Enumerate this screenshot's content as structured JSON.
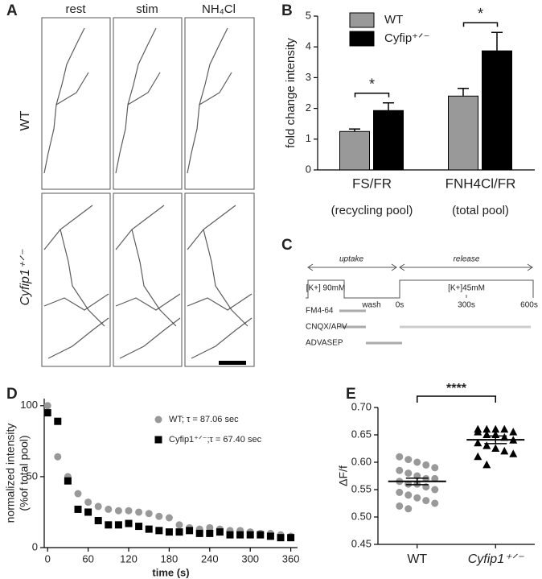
{
  "panel_labels": [
    "A",
    "B",
    "C",
    "D",
    "E"
  ],
  "images": {
    "columns": [
      "rest",
      "stim",
      "NH₄Cl"
    ],
    "rows": [
      "WT",
      "Cyfip1⁺ᐟ⁻"
    ]
  },
  "protocol": {
    "phases": [
      "uptake",
      "release"
    ],
    "stimuli": [
      "[K+] 90mM",
      "[K+]45mM"
    ],
    "wash": "wash",
    "times": [
      "0s",
      "300s",
      "600s"
    ],
    "drugs": [
      "FM4-64",
      "CNQX/APV",
      "ADVASEP"
    ]
  },
  "chart_data": [
    {
      "type": "bar",
      "y_label": "fold change intensity",
      "categories": [
        "FS/FR",
        "FNH4Cl/FR"
      ],
      "category_notes": [
        "(recycling pool)",
        "(total pool)"
      ],
      "series": [
        {
          "name": "WT",
          "color": "#999999",
          "values": [
            1.25,
            2.4
          ],
          "errors": [
            0.08,
            0.25
          ]
        },
        {
          "name": "Cyfip⁺ᐟ⁻",
          "color": "#000000",
          "values": [
            1.93,
            3.87
          ],
          "errors": [
            0.25,
            0.6
          ]
        }
      ],
      "ylim": [
        0,
        5
      ],
      "yticks": [
        0,
        1,
        2,
        3,
        4,
        5
      ],
      "significance": [
        "*",
        "*"
      ]
    },
    {
      "type": "scatter",
      "x_label": "time (s)",
      "y_label": [
        "normalized intensity",
        "(%of total pool)"
      ],
      "series": [
        {
          "name": "WT; τ = 87.06 sec",
          "color": "#999999",
          "marker": "circle",
          "x": [
            0,
            15,
            30,
            45,
            60,
            75,
            90,
            105,
            120,
            135,
            150,
            165,
            180,
            195,
            210,
            225,
            240,
            255,
            270,
            285,
            300,
            315,
            330,
            345,
            360
          ],
          "values": [
            100,
            64,
            50,
            38,
            32,
            29,
            27,
            26,
            26,
            25,
            24,
            22,
            21,
            16,
            14,
            13,
            14,
            13,
            12,
            12,
            11,
            10,
            10,
            9,
            8
          ]
        },
        {
          "name": "Cyfip1⁺ᐟ⁻;τ = 67.40 sec",
          "color": "#000000",
          "marker": "square",
          "x": [
            0,
            15,
            30,
            45,
            60,
            75,
            90,
            105,
            120,
            135,
            150,
            165,
            180,
            195,
            210,
            225,
            240,
            255,
            270,
            285,
            300,
            315,
            330,
            345,
            360
          ],
          "values": [
            95,
            89,
            47,
            27,
            25,
            19,
            16,
            16,
            17,
            15,
            13,
            12,
            11,
            11,
            12,
            10,
            10,
            11,
            9,
            9,
            9,
            9,
            8,
            7,
            7
          ]
        }
      ],
      "xlim": [
        -5,
        370
      ],
      "xticks": [
        0,
        60,
        120,
        180,
        240,
        300,
        360
      ],
      "ylim": [
        0,
        105
      ],
      "yticks": [
        0,
        50,
        100
      ]
    },
    {
      "type": "dot",
      "y_label": "ΔF/f",
      "categories": [
        "WT",
        "Cyfip1⁺ᐟ⁻"
      ],
      "groups": [
        {
          "color": "#999999",
          "marker": "circle",
          "values": [
            0.61,
            0.605,
            0.6,
            0.595,
            0.59,
            0.585,
            0.58,
            0.575,
            0.57,
            0.57,
            0.565,
            0.56,
            0.56,
            0.555,
            0.55,
            0.545,
            0.54,
            0.535,
            0.53,
            0.525,
            0.52,
            0.515
          ],
          "mean": 0.565,
          "sem": 0.006
        },
        {
          "color": "#000000",
          "marker": "triangle",
          "values": [
            0.66,
            0.66,
            0.66,
            0.66,
            0.655,
            0.655,
            0.65,
            0.65,
            0.645,
            0.64,
            0.635,
            0.63,
            0.625,
            0.62,
            0.615,
            0.61,
            0.595
          ],
          "mean": 0.641,
          "sem": 0.007
        }
      ],
      "ylim": [
        0.45,
        0.7
      ],
      "yticks": [
        0.45,
        {
          "value": 0.5,
          "label": "0.50"
        },
        0.55,
        {
          "value": 0.6,
          "label": "0.60"
        },
        0.65,
        {
          "value": 0.7,
          "label": "0.70"
        }
      ],
      "significance": "****"
    }
  ]
}
